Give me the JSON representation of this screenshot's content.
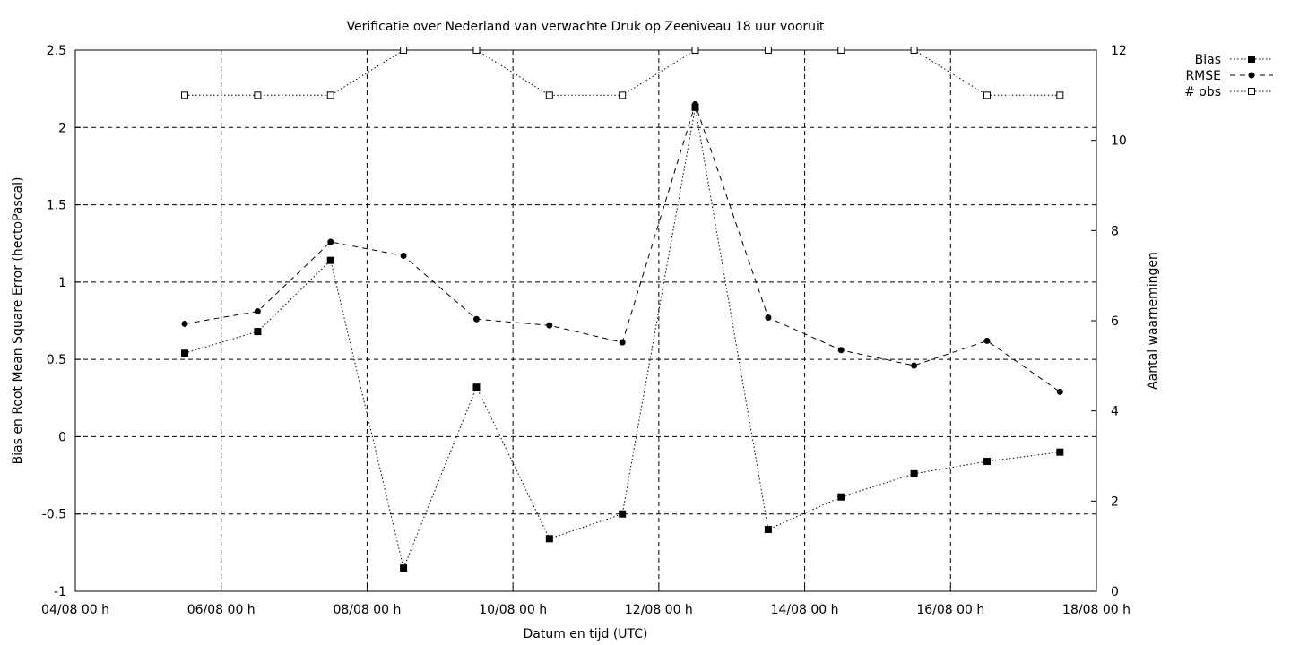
{
  "chart_data": {
    "type": "line",
    "title": "Verificatie over Nederland van verwachte Druk op Zeeniveau 18 uur vooruit",
    "xlabel": "Datum en tijd (UTC)",
    "ylabel": "Bias en Root Mean Square Error (hectoPascal)",
    "y2label": "Aantal waarnemingen",
    "x_ticks": [
      "04/08 00 h",
      "06/08 00 h",
      "08/08 00 h",
      "10/08 00 h",
      "12/08 00 h",
      "14/08 00 h",
      "16/08 00 h",
      "18/08 00 h"
    ],
    "x_tick_days": [
      0,
      2,
      4,
      6,
      8,
      10,
      12,
      14
    ],
    "xlim_days": [
      0,
      14
    ],
    "ylim": [
      -1,
      2.5
    ],
    "y_ticks": [
      -1,
      -0.5,
      0,
      0.5,
      1,
      1.5,
      2,
      2.5
    ],
    "y2lim": [
      0,
      12
    ],
    "y2_ticks": [
      0,
      2,
      4,
      6,
      8,
      10,
      12
    ],
    "grid": true,
    "legend_position": "outside-top-right",
    "x_days": [
      1.5,
      2.5,
      3.5,
      4.5,
      5.5,
      6.5,
      7.5,
      8.5,
      9.5,
      10.5,
      11.5,
      12.5,
      13.5
    ],
    "series": [
      {
        "name": "Bias",
        "axis": "left",
        "marker": "filled-square",
        "dash": "dotted",
        "values": [
          0.54,
          0.68,
          1.14,
          -0.85,
          0.32,
          -0.66,
          -0.5,
          2.13,
          -0.6,
          -0.39,
          -0.24,
          -0.16,
          -0.1
        ]
      },
      {
        "name": "RMSE",
        "axis": "left",
        "marker": "filled-circle",
        "dash": "dashed",
        "values": [
          0.73,
          0.81,
          1.26,
          1.17,
          0.76,
          0.72,
          0.61,
          2.15,
          0.77,
          0.56,
          0.46,
          0.62,
          0.29
        ]
      },
      {
        "name": "# obs",
        "axis": "right",
        "marker": "open-square",
        "dash": "dotted",
        "values": [
          11,
          11,
          11,
          12,
          12,
          11,
          11,
          12,
          12,
          12,
          12,
          11,
          11
        ]
      }
    ]
  }
}
